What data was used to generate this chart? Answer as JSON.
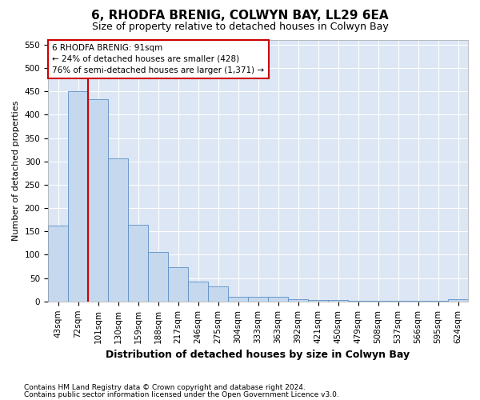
{
  "title": "6, RHODFA BRENIG, COLWYN BAY, LL29 6EA",
  "subtitle": "Size of property relative to detached houses in Colwyn Bay",
  "xlabel": "Distribution of detached houses by size in Colwyn Bay",
  "ylabel": "Number of detached properties",
  "footnote1": "Contains HM Land Registry data © Crown copyright and database right 2024.",
  "footnote2": "Contains public sector information licensed under the Open Government Licence v3.0.",
  "categories": [
    "43sqm",
    "72sqm",
    "101sqm",
    "130sqm",
    "159sqm",
    "188sqm",
    "217sqm",
    "246sqm",
    "275sqm",
    "304sqm",
    "333sqm",
    "363sqm",
    "392sqm",
    "421sqm",
    "450sqm",
    "479sqm",
    "508sqm",
    "537sqm",
    "566sqm",
    "595sqm",
    "624sqm"
  ],
  "values": [
    163,
    450,
    433,
    307,
    165,
    106,
    73,
    43,
    33,
    10,
    10,
    10,
    5,
    3,
    3,
    2,
    2,
    1,
    1,
    1,
    5
  ],
  "bar_color": "#c5d8ee",
  "bar_edge_color": "#5b8ec4",
  "background_color": "#dce6f5",
  "grid_color": "#ffffff",
  "fig_background": "#ffffff",
  "vline_x_index": 2,
  "vline_color": "#cc0000",
  "annotation_line1": "6 RHODFA BRENIG: 91sqm",
  "annotation_line2": "← 24% of detached houses are smaller (428)",
  "annotation_line3": "76% of semi-detached houses are larger (1,371) →",
  "annotation_box_facecolor": "#ffffff",
  "annotation_box_edgecolor": "#cc0000",
  "ylim": [
    0,
    560
  ],
  "yticks": [
    0,
    50,
    100,
    150,
    200,
    250,
    300,
    350,
    400,
    450,
    500,
    550
  ],
  "title_fontsize": 11,
  "subtitle_fontsize": 9,
  "ylabel_fontsize": 8,
  "xlabel_fontsize": 9,
  "tick_fontsize": 7.5,
  "footnote_fontsize": 6.5
}
